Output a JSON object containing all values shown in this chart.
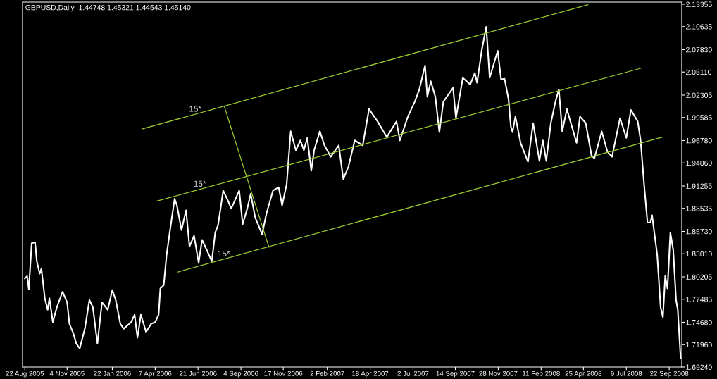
{
  "chart_data": {
    "type": "line",
    "title": "GBPUSD,Daily  1.44748 1.45321 1.44543 1.45140",
    "x": [
      "2005-08-22",
      "2005-08-26",
      "2005-08-29",
      "2005-09-03",
      "2005-09-09",
      "2005-09-12",
      "2005-09-17",
      "2005-09-20",
      "2005-09-26",
      "2005-10-01",
      "2005-10-04",
      "2005-10-10",
      "2005-10-17",
      "2005-10-27",
      "2005-11-04",
      "2005-11-08",
      "2005-11-15",
      "2005-11-20",
      "2005-11-26",
      "2005-12-05",
      "2005-12-13",
      "2005-12-19",
      "2005-12-27",
      "2006-01-04",
      "2006-01-14",
      "2006-01-22",
      "2006-01-28",
      "2006-02-05",
      "2006-02-11",
      "2006-02-24",
      "2006-03-02",
      "2006-03-07",
      "2006-03-13",
      "2006-03-22",
      "2006-03-31",
      "2006-04-07",
      "2006-04-13",
      "2006-04-16",
      "2006-04-22",
      "2006-04-27",
      "2006-05-03",
      "2006-05-11",
      "2006-05-15",
      "2006-05-23",
      "2006-05-31",
      "2006-06-06",
      "2006-06-14",
      "2006-06-22",
      "2006-06-28",
      "2006-07-06",
      "2006-07-15",
      "2006-07-21",
      "2006-07-26",
      "2006-08-04",
      "2006-08-12",
      "2006-08-18",
      "2006-09-01",
      "2006-09-07",
      "2006-09-15",
      "2006-09-21",
      "2006-09-29",
      "2006-10-11",
      "2006-10-19",
      "2006-10-30",
      "2006-11-09",
      "2006-11-15",
      "2006-11-23",
      "2006-11-30",
      "2006-12-09",
      "2006-12-17",
      "2006-12-23",
      "2006-12-29",
      "2007-01-05",
      "2007-01-10",
      "2007-01-20",
      "2007-01-28",
      "2007-02-08",
      "2007-02-22",
      "2007-03-02",
      "2007-03-11",
      "2007-03-22",
      "2007-04-05",
      "2007-04-16",
      "2007-05-01",
      "2007-05-17",
      "2007-06-03",
      "2007-06-09",
      "2007-06-23",
      "2007-07-05",
      "2007-07-13",
      "2007-07-23",
      "2007-07-27",
      "2007-08-02",
      "2007-08-10",
      "2007-08-17",
      "2007-08-24",
      "2007-09-10",
      "2007-09-15",
      "2007-09-27",
      "2007-10-10",
      "2007-10-18",
      "2007-10-22",
      "2007-10-30",
      "2007-11-07",
      "2007-11-13",
      "2007-11-27",
      "2007-12-03",
      "2007-12-09",
      "2007-12-16",
      "2007-12-20",
      "2007-12-23",
      "2007-12-28",
      "2008-01-06",
      "2008-01-19",
      "2008-01-28",
      "2008-02-08",
      "2008-02-14",
      "2008-02-20",
      "2008-02-28",
      "2008-03-07",
      "2008-03-13",
      "2008-03-19",
      "2008-03-27",
      "2008-04-13",
      "2008-04-19",
      "2008-04-29",
      "2008-05-09",
      "2008-05-14",
      "2008-05-27",
      "2008-06-06",
      "2008-06-14",
      "2008-06-28",
      "2008-07-09",
      "2008-07-17",
      "2008-07-29",
      "2008-08-03",
      "2008-08-09",
      "2008-08-15",
      "2008-08-20",
      "2008-08-23",
      "2008-09-01",
      "2008-09-07",
      "2008-09-11",
      "2008-09-15",
      "2008-09-19",
      "2008-09-24",
      "2008-09-29",
      "2008-10-04",
      "2008-10-07",
      "2008-10-12"
    ],
    "series": [
      {
        "color": "#ffffff",
        "values": [
          1.8,
          1.803,
          1.787,
          1.843,
          1.844,
          1.821,
          1.806,
          1.812,
          1.776,
          1.762,
          1.776,
          1.747,
          1.765,
          1.784,
          1.771,
          1.745,
          1.733,
          1.721,
          1.715,
          1.739,
          1.774,
          1.765,
          1.721,
          1.771,
          1.762,
          1.786,
          1.774,
          1.745,
          1.739,
          1.747,
          1.756,
          1.728,
          1.756,
          1.735,
          1.745,
          1.747,
          1.756,
          1.788,
          1.792,
          1.829,
          1.859,
          1.897,
          1.889,
          1.859,
          1.883,
          1.839,
          1.852,
          1.819,
          1.847,
          1.835,
          1.821,
          1.856,
          1.865,
          1.907,
          1.895,
          1.885,
          1.907,
          1.866,
          1.885,
          1.903,
          1.874,
          1.854,
          1.88,
          1.907,
          1.911,
          1.889,
          1.915,
          1.979,
          1.956,
          1.968,
          1.956,
          1.971,
          1.931,
          1.956,
          1.979,
          1.962,
          1.948,
          1.962,
          1.921,
          1.936,
          1.968,
          1.962,
          2.006,
          1.991,
          1.972,
          1.991,
          1.968,
          1.997,
          2.015,
          2.03,
          2.059,
          2.021,
          2.04,
          2.021,
          1.978,
          2.015,
          2.032,
          1.995,
          2.044,
          2.036,
          2.05,
          2.038,
          2.077,
          2.106,
          2.044,
          2.077,
          2.042,
          2.043,
          2.018,
          1.985,
          1.978,
          1.997,
          1.965,
          1.942,
          1.989,
          1.943,
          1.968,
          1.943,
          1.989,
          2.015,
          2.03,
          1.979,
          2.006,
          1.965,
          1.997,
          1.989,
          1.95,
          1.946,
          1.979,
          1.954,
          1.948,
          1.995,
          1.971,
          2.005,
          1.991,
          1.968,
          1.915,
          1.868,
          1.868,
          1.877,
          1.829,
          1.765,
          1.753,
          1.803,
          1.788,
          1.856,
          1.835,
          1.774,
          1.762,
          1.703
        ]
      },
      {
        "type": "line",
        "color": "#9acd32",
        "x": [
          "2006-03-16",
          "2008-05-03"
        ],
        "values": [
          1.982,
          2.133
        ]
      },
      {
        "type": "line",
        "color": "#9acd32",
        "x": [
          "2006-04-09",
          "2008-08-05"
        ],
        "values": [
          1.894,
          2.056
        ]
      },
      {
        "type": "line",
        "color": "#9acd32",
        "x": [
          "2006-05-17",
          "2008-09-10"
        ],
        "values": [
          1.808,
          1.972
        ]
      },
      {
        "type": "line",
        "color": "#9acd32",
        "x": [
          "2006-08-06",
          "2006-10-23"
        ],
        "values": [
          2.009,
          1.838
        ]
      }
    ],
    "annotations": [
      {
        "text": "15*",
        "x": "2006-06-16",
        "y": 1.999
      },
      {
        "text": "15*",
        "x": "2006-06-24",
        "y": 1.908
      },
      {
        "text": "15*",
        "x": "2006-08-05",
        "y": 1.823
      }
    ],
    "xlim": [
      "2005-08-18",
      "2008-10-14"
    ],
    "xticks": [
      {
        "value": "2005-08-22",
        "label": "22 Aug 2005"
      },
      {
        "value": "2005-11-04",
        "label": "4 Nov 2005"
      },
      {
        "value": "2006-01-22",
        "label": "22 Jan 2006"
      },
      {
        "value": "2006-04-07",
        "label": "7 Apr 2006"
      },
      {
        "value": "2006-06-21",
        "label": "21 Jun 2006"
      },
      {
        "value": "2006-09-04",
        "label": "4 Sep 2006"
      },
      {
        "value": "2006-11-17",
        "label": "17 Nov 2006"
      },
      {
        "value": "2007-02-02",
        "label": "2 Feb 2007"
      },
      {
        "value": "2007-04-18",
        "label": "18 Apr 2007"
      },
      {
        "value": "2007-07-02",
        "label": "2 Jul 2007"
      },
      {
        "value": "2007-09-14",
        "label": "14 Sep 2007"
      },
      {
        "value": "2007-11-28",
        "label": "28 Nov 2007"
      },
      {
        "value": "2008-02-11",
        "label": "11 Feb 2008"
      },
      {
        "value": "2008-04-25",
        "label": "25 Apr 2008"
      },
      {
        "value": "2008-07-09",
        "label": "9 Jul 2008"
      },
      {
        "value": "2008-09-22",
        "label": "22 Sep 2008"
      }
    ],
    "ylim": [
      1.6924,
      2.1361
    ],
    "yticks": [
      2.13355,
      2.10635,
      {
        "value": 2.0783,
        "label": "2.07830"
      },
      {
        "value": 2.0511,
        "label": "2.05110"
      },
      2.02305,
      1.99585,
      {
        "value": 1.9678,
        "label": "1.96780"
      },
      {
        "value": 1.9406,
        "label": "1.94060"
      },
      1.91255,
      1.88535,
      {
        "value": 1.8573,
        "label": "1.85730"
      },
      {
        "value": 1.8301,
        "label": "1.83010"
      },
      1.80205,
      1.77485,
      {
        "value": 1.7468,
        "label": "1.74680"
      },
      {
        "value": 1.7196,
        "label": "1.71960"
      },
      {
        "value": 1.6924,
        "label": "1.69240"
      }
    ]
  }
}
